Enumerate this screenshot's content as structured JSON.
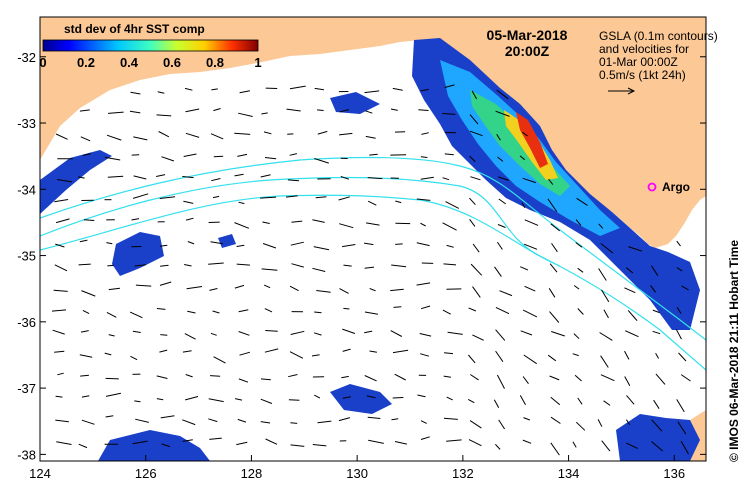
{
  "map": {
    "title_date": "05-Mar-2018",
    "title_time": "20:00Z",
    "x_ticks": [
      "124",
      "126",
      "128",
      "130",
      "132",
      "134",
      "136"
    ],
    "y_ticks": [
      "-32",
      "-33",
      "-34",
      "-35",
      "-36",
      "-37",
      "-38"
    ],
    "lon_range": [
      124,
      136.6
    ],
    "lat_range": [
      -38.1,
      -31.4
    ],
    "colors": {
      "land": "#fbc896",
      "ocean": "#ffffff",
      "contour": "#33e0ee",
      "marker": "#ff00ff"
    }
  },
  "colorbar": {
    "label": "std dev of 4hr SST comp",
    "ticks": [
      "0",
      "0.2",
      "0.4",
      "0.6",
      "0.8",
      "1"
    ]
  },
  "legend": {
    "lines": [
      "GSLA (0.1m contours)",
      "and velocities for",
      "01-Mar 00:00Z",
      "0.5m/s (1kt 24h)"
    ]
  },
  "argo": {
    "label": "Argo"
  },
  "credit": "©  IMOS 06-Mar-2018 21:11 Hobart Time"
}
